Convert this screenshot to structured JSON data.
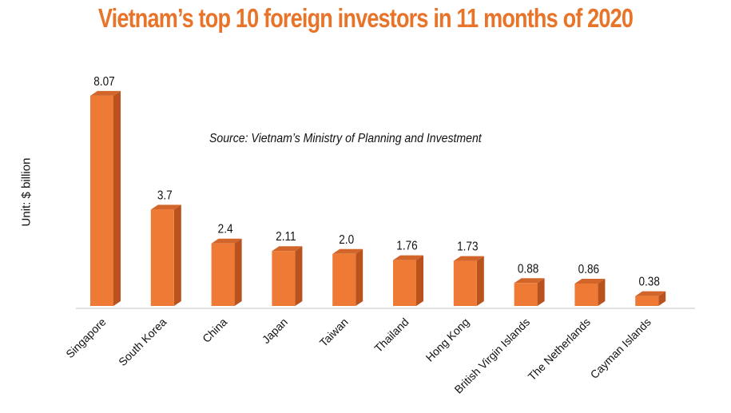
{
  "chart_data": {
    "type": "bar",
    "title": "Vietnam’s top 10 foreign investors in 11 months of 2020",
    "subtitle": "Source: Vietnam’s Ministry of Planning and Investment",
    "xlabel": "",
    "ylabel": "Unit: $ billion",
    "categories": [
      "Singapore",
      "South Korea",
      "China",
      "Japan",
      "Taiwan",
      "Thailand",
      "Hong Kong",
      "British Virgin Islands",
      "The Netherlands",
      "Cayman Islands"
    ],
    "values": [
      8.07,
      3.7,
      2.4,
      2.11,
      2.0,
      1.76,
      1.73,
      0.88,
      0.86,
      0.38
    ],
    "value_labels": [
      "8.07",
      "3.7",
      "2.4",
      "2.11",
      "2.0",
      "1.76",
      "1.73",
      "0.88",
      "0.86",
      "0.38"
    ],
    "ylim": [
      0,
      8.5
    ],
    "grid": false,
    "colors": {
      "front": "#ee7a35",
      "side": "#b9521d",
      "top": "#d2662a",
      "title": "#e8742a"
    }
  }
}
